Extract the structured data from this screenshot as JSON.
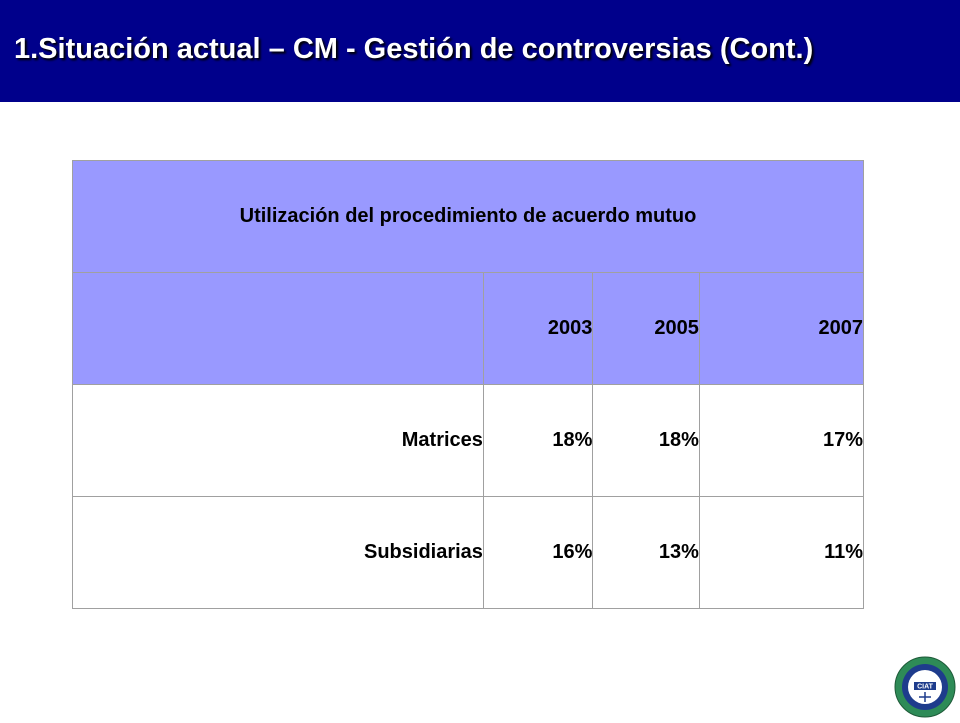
{
  "slide": {
    "title": "1.Situación actual – CM - Gestión de controversias (Cont.)"
  },
  "table": {
    "header": "Utilización del procedimiento de acuerdo mutuo",
    "years": [
      "2003",
      "2005",
      "2007"
    ],
    "rows": [
      {
        "label": "Matrices",
        "values": [
          "18%",
          "18%",
          "17%"
        ]
      },
      {
        "label": "Subsidiarias",
        "values": [
          "16%",
          "13%",
          "11%"
        ]
      }
    ]
  },
  "logo": {
    "text": "CIAT",
    "colors": {
      "ring_outer": "#2e8b57",
      "ring_inner": "#1e3c8c",
      "center": "#ffffff"
    }
  },
  "colors": {
    "title_bar": "#00008b",
    "header_fill": "#9999ff",
    "border": "#a0a0a0"
  }
}
